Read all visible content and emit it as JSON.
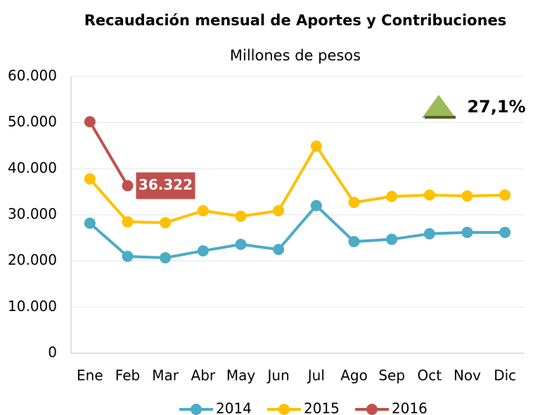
{
  "chart_data": {
    "type": "line",
    "title": "Recaudación mensual de Aportes y Contribuciones",
    "subtitle": "Millones de pesos",
    "categories": [
      "Ene",
      "Feb",
      "Mar",
      "Abr",
      "May",
      "Jun",
      "Jul",
      "Ago",
      "Sep",
      "Oct",
      "Nov",
      "Dic"
    ],
    "series": [
      {
        "name": "2014",
        "color": "#4bacc6",
        "values": [
          28200,
          21000,
          20700,
          22200,
          23600,
          22500,
          32000,
          24200,
          24700,
          25900,
          26200,
          26200
        ]
      },
      {
        "name": "2015",
        "color": "#ffc000",
        "values": [
          37800,
          28500,
          28300,
          30900,
          29700,
          30900,
          44900,
          32700,
          34000,
          34300,
          34100,
          34300
        ]
      },
      {
        "name": "2016",
        "color": "#c0504d",
        "values": [
          50200,
          36322,
          null,
          null,
          null,
          null,
          null,
          null,
          null,
          null,
          null,
          null
        ],
        "value_labels": [
          null,
          "36.322",
          null,
          null,
          null,
          null,
          null,
          null,
          null,
          null,
          null,
          null
        ]
      }
    ],
    "ylim": [
      0,
      60000
    ],
    "yticks": [
      0,
      {
        "value": 10000,
        "label": "10.000"
      },
      {
        "value": 20000,
        "label": "20.000"
      },
      {
        "value": 30000,
        "label": "30.000"
      },
      {
        "value": 40000,
        "label": "40.000"
      },
      {
        "value": 50000,
        "label": "50.000"
      },
      {
        "value": 60000,
        "label": "60.000"
      }
    ],
    "grid": true,
    "legend": "bottom",
    "annotation": "27,1%",
    "annotation_color": "#9bbb59"
  }
}
